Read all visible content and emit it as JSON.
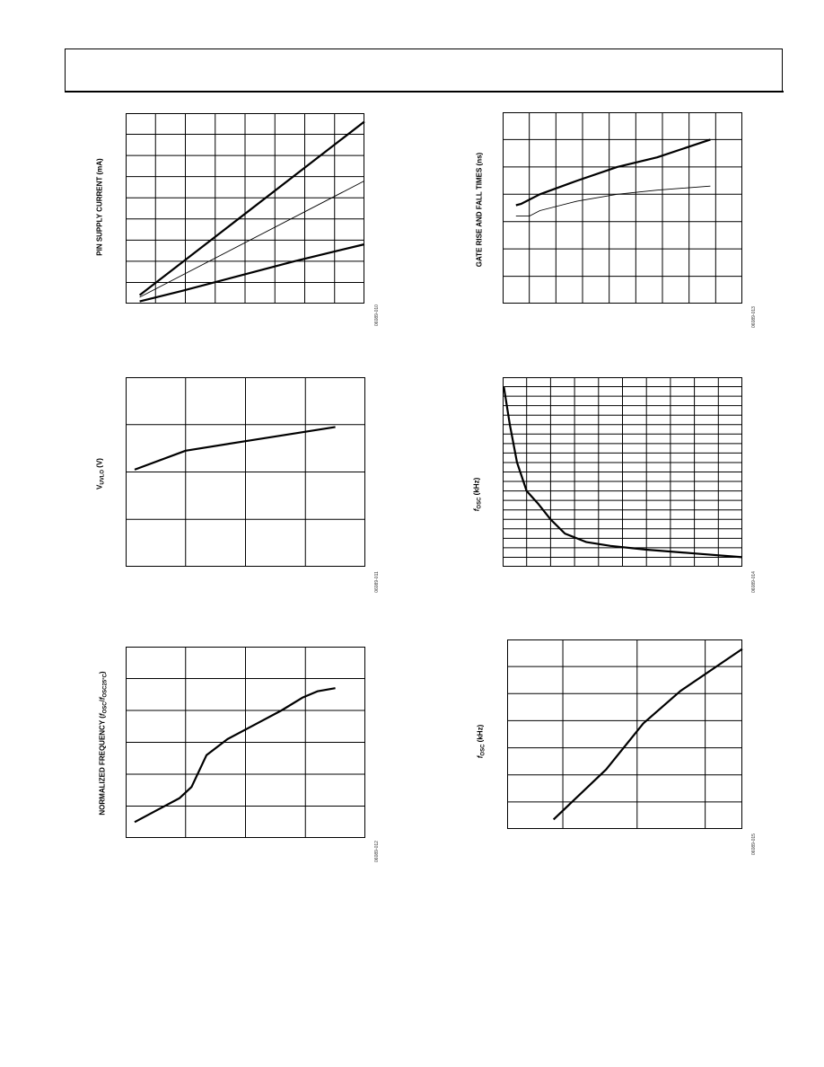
{
  "header": {},
  "chart_data": [
    {
      "id": "c1",
      "type": "line",
      "ylabel": "PIN SUPPLY CURRENT (mA)",
      "figure_id": "06089-010",
      "grid": {
        "vlines": 8,
        "hlines": 9
      },
      "xlim": [
        0,
        8.5
      ],
      "ylim": [
        0,
        9
      ],
      "series": [
        {
          "weight": "thick",
          "points": [
            [
              0.5,
              0.4
            ],
            [
              8.5,
              8.6
            ]
          ]
        },
        {
          "weight": "thin",
          "points": [
            [
              0.5,
              0.3
            ],
            [
              8.5,
              5.8
            ]
          ]
        },
        {
          "weight": "thick",
          "points": [
            [
              0.5,
              0.1
            ],
            [
              2.0,
              0.6
            ],
            [
              4.0,
              1.3
            ],
            [
              6.0,
              2.0
            ],
            [
              8.5,
              2.8
            ]
          ]
        }
      ]
    },
    {
      "id": "c2",
      "type": "line",
      "ylabel": "GATE RISE AND FALL TIMES (ns)",
      "figure_id": "06089-013",
      "grid": {
        "vlines": 9,
        "hlines": 7
      },
      "xlim": [
        0,
        9
      ],
      "ylim": [
        0,
        7
      ],
      "series": [
        {
          "weight": "thick",
          "points": [
            [
              0.5,
              3.6
            ],
            [
              0.7,
              3.65
            ],
            [
              1.4,
              4.0
            ],
            [
              2.8,
              4.5
            ],
            [
              4.3,
              5.0
            ],
            [
              5.8,
              5.35
            ],
            [
              7.8,
              6.0
            ]
          ]
        },
        {
          "weight": "thin",
          "points": [
            [
              0.5,
              3.2
            ],
            [
              1.0,
              3.2
            ],
            [
              1.4,
              3.4
            ],
            [
              2.8,
              3.75
            ],
            [
              4.3,
              4.0
            ],
            [
              5.8,
              4.15
            ],
            [
              7.8,
              4.3
            ]
          ]
        }
      ]
    },
    {
      "id": "c3",
      "type": "line",
      "ylabel": "V_UVLO (V)",
      "figure_id": "06089-011",
      "grid": {
        "vlines": 4,
        "hlines": 4
      },
      "xlim": [
        0,
        4
      ],
      "ylim": [
        0,
        4
      ],
      "series": [
        {
          "weight": "thick",
          "points": [
            [
              0.15,
              2.05
            ],
            [
              1.0,
              2.45
            ],
            [
              2.0,
              2.65
            ],
            [
              3.0,
              2.85
            ],
            [
              3.5,
              2.95
            ]
          ]
        }
      ]
    },
    {
      "id": "c4",
      "type": "line",
      "ylabel": "f_OSC (kHz)",
      "figure_id": "06089-014",
      "grid": {
        "vlines": 10,
        "hlines": 20
      },
      "xlim": [
        0,
        10
      ],
      "ylim": [
        0,
        20
      ],
      "series": [
        {
          "weight": "thick",
          "points": [
            [
              0.05,
              19.0
            ],
            [
              0.3,
              15.0
            ],
            [
              0.6,
              11.0
            ],
            [
              1.0,
              8.0
            ],
            [
              1.5,
              6.6
            ],
            [
              2.0,
              5.0
            ],
            [
              2.6,
              3.5
            ],
            [
              3.5,
              2.6
            ],
            [
              4.5,
              2.2
            ],
            [
              6.0,
              1.8
            ],
            [
              8.0,
              1.4
            ],
            [
              10.0,
              1.0
            ]
          ]
        }
      ]
    },
    {
      "id": "c5",
      "type": "line",
      "ylabel": "NORMALIZED FREQUENCY (f_OSC/f_OSC25°C)",
      "figure_id": "06089-012",
      "grid": {
        "vlines": 4,
        "hlines": 6
      },
      "xlim": [
        0,
        4
      ],
      "ylim": [
        0,
        6
      ],
      "series": [
        {
          "weight": "thick",
          "points": [
            [
              0.15,
              0.5
            ],
            [
              0.5,
              0.85
            ],
            [
              0.9,
              1.25
            ],
            [
              1.1,
              1.6
            ],
            [
              1.35,
              2.6
            ],
            [
              1.7,
              3.1
            ],
            [
              2.2,
              3.6
            ],
            [
              2.6,
              4.0
            ],
            [
              2.95,
              4.4
            ],
            [
              3.2,
              4.6
            ],
            [
              3.5,
              4.7
            ]
          ]
        }
      ]
    },
    {
      "id": "c6",
      "type": "line",
      "ylabel": "f_OSC (kHz)",
      "figure_id": "06089-015",
      "grid": {
        "vlines": 4,
        "hlines": 7,
        "vline_at": [
          0.9,
          2.1,
          3.2
        ]
      },
      "xlim": [
        0,
        3.8
      ],
      "ylim": [
        0,
        7
      ],
      "series": [
        {
          "weight": "thick",
          "points": [
            [
              0.75,
              0.35
            ],
            [
              1.6,
              2.2
            ],
            [
              2.2,
              3.9
            ],
            [
              2.8,
              5.1
            ],
            [
              3.8,
              6.65
            ]
          ]
        }
      ]
    }
  ]
}
